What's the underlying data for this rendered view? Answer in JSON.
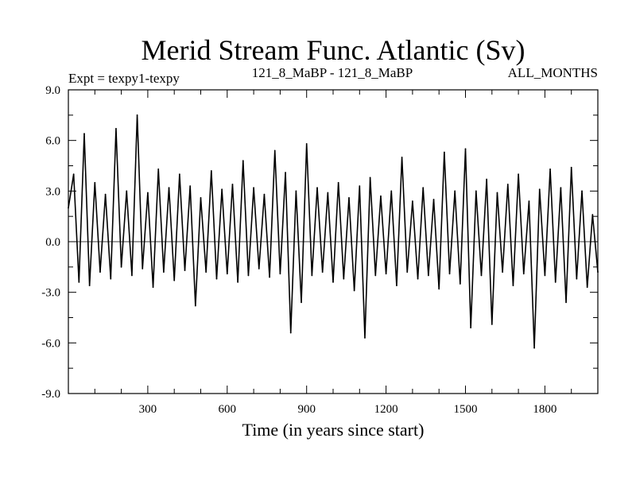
{
  "chart_data": {
    "type": "line",
    "title": "Merid Stream Func. Atlantic (Sv)",
    "subtitle_left": "Expt = texpy1-texpy",
    "subtitle_center": "121_8_MaBP - 121_8_MaBP",
    "subtitle_right": "ALL_MONTHS",
    "xlabel": "Time (in years since start)",
    "ylabel": "",
    "xlim": [
      0,
      2000
    ],
    "ylim": [
      -9.0,
      9.0
    ],
    "x_ticks": [
      300,
      600,
      900,
      1200,
      1500,
      1800
    ],
    "x_tick_labels": [
      "300",
      "600",
      "900",
      "1200",
      "1500",
      "1800"
    ],
    "y_ticks": [
      -9,
      -6,
      -3,
      0,
      3,
      6,
      9
    ],
    "y_tick_labels": [
      "-9.0",
      "-6.0",
      "-3.0",
      "0.0",
      "3.0",
      "6.0",
      "9.0"
    ],
    "zero_line": true,
    "series": [
      {
        "color": "#000000",
        "x": [
          0,
          20,
          40,
          60,
          80,
          100,
          120,
          140,
          160,
          180,
          200,
          220,
          240,
          260,
          280,
          300,
          320,
          340,
          360,
          380,
          400,
          420,
          440,
          460,
          480,
          500,
          520,
          540,
          560,
          580,
          600,
          620,
          640,
          660,
          680,
          700,
          720,
          740,
          760,
          780,
          800,
          820,
          840,
          860,
          880,
          900,
          920,
          940,
          960,
          980,
          1000,
          1020,
          1040,
          1060,
          1080,
          1100,
          1120,
          1140,
          1160,
          1180,
          1200,
          1220,
          1240,
          1260,
          1280,
          1300,
          1320,
          1340,
          1360,
          1380,
          1400,
          1420,
          1440,
          1460,
          1480,
          1500,
          1520,
          1540,
          1560,
          1580,
          1600,
          1620,
          1640,
          1660,
          1680,
          1700,
          1720,
          1740,
          1760,
          1780,
          1800,
          1820,
          1840,
          1860,
          1880,
          1900,
          1920,
          1940,
          1960,
          1980,
          2000
        ],
        "y": [
          2.0,
          4.0,
          -2.4,
          6.4,
          -2.6,
          3.5,
          -1.8,
          2.8,
          -2.2,
          6.7,
          -1.5,
          3.0,
          -2.0,
          7.5,
          -1.6,
          2.9,
          -2.7,
          4.3,
          -1.8,
          3.2,
          -2.3,
          4.0,
          -1.7,
          3.3,
          -3.8,
          2.6,
          -1.8,
          4.2,
          -2.2,
          3.1,
          -1.9,
          3.4,
          -2.4,
          4.8,
          -2.0,
          3.2,
          -1.6,
          2.8,
          -2.1,
          5.4,
          -1.9,
          4.1,
          -5.4,
          3.0,
          -3.6,
          5.8,
          -2.0,
          3.2,
          -1.8,
          2.9,
          -2.4,
          3.5,
          -2.2,
          2.6,
          -2.9,
          3.3,
          -5.7,
          3.8,
          -2.0,
          2.7,
          -1.9,
          3.0,
          -2.6,
          5.0,
          -1.8,
          2.4,
          -2.2,
          3.2,
          -2.0,
          2.5,
          -2.8,
          5.3,
          -1.9,
          3.0,
          -2.5,
          5.5,
          -5.1,
          3.0,
          -2.0,
          3.7,
          -4.9,
          2.9,
          -1.8,
          3.4,
          -2.6,
          4.0,
          -1.9,
          2.4,
          -6.3,
          3.1,
          -2.0,
          4.3,
          -2.4,
          3.2,
          -3.6,
          4.4,
          -2.2,
          3.0,
          -2.7,
          1.6,
          -1.8
        ]
      }
    ]
  }
}
